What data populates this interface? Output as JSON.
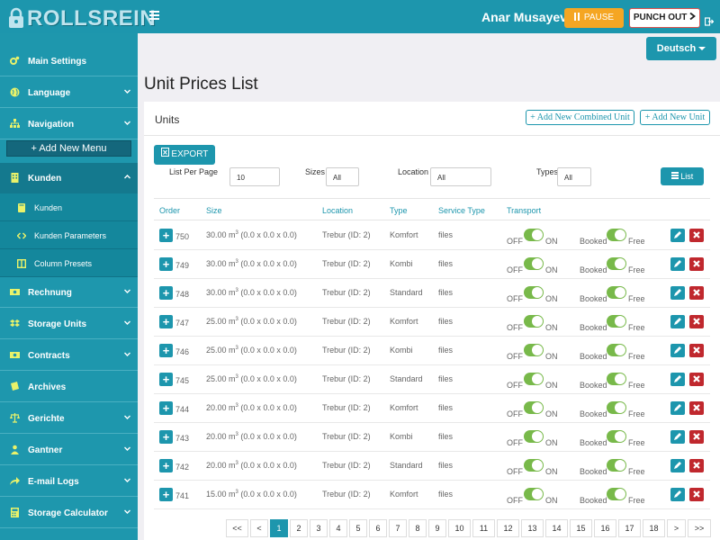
{
  "header": {
    "logo_text": "ROLLSREIN",
    "username": "Anar Musayev",
    "pause_label": "PAUSE",
    "punch_out_label": "PUNCH OUT",
    "language_label": "Deutsch",
    "colors": {
      "accent": "#1d96ad",
      "pause": "#f5a623",
      "danger": "#c0282e",
      "toggle": "#78b94a"
    }
  },
  "sidebar": {
    "items": [
      {
        "label": "Main Settings",
        "icon": "cogs-icon"
      },
      {
        "label": "Language",
        "icon": "globe-icon"
      },
      {
        "label": "Navigation",
        "icon": "sitemap-icon"
      },
      {
        "label": "Kunden",
        "icon": "building-icon"
      },
      {
        "label": "Rechnung",
        "icon": "money-icon"
      },
      {
        "label": "Storage Units",
        "icon": "dropbox-icon"
      },
      {
        "label": "Contracts",
        "icon": "money-icon"
      },
      {
        "label": "Archives",
        "icon": "book-icon"
      },
      {
        "label": "Gerichte",
        "icon": "balance-scale-icon"
      },
      {
        "label": "Gantner",
        "icon": "users-icon"
      },
      {
        "label": "E-mail Logs",
        "icon": "share-icon"
      },
      {
        "label": "Storage Calculator",
        "icon": "calculator-icon"
      }
    ],
    "add_new_menu": "Add New Menu",
    "sub_items": [
      {
        "label": "Kunden",
        "icon": "book-icon"
      },
      {
        "label": "Kunden Parameters",
        "icon": "code-icon"
      },
      {
        "label": "Column Presets",
        "icon": "columns-icon"
      }
    ]
  },
  "page": {
    "title": "Unit Prices List",
    "card_title": "Units",
    "add_combined_unit": "Add New Combined Unit",
    "add_unit": "Add New Unit",
    "export_label": "EXPORT",
    "list_label": "List"
  },
  "filters": {
    "list_per_page_label": "List Per Page",
    "list_per_page_value": "10",
    "sizes_label": "Sizes",
    "sizes_value": "All",
    "location_label": "Location",
    "location_value": "All",
    "types_label": "Types",
    "types_value": "All"
  },
  "table": {
    "columns": [
      "Order",
      "Size",
      "Location",
      "Type",
      "Service Type",
      "Transport"
    ],
    "off_label": "OFF",
    "on_label": "ON",
    "booked_label": "Booked",
    "free_label": "Free",
    "rows": [
      {
        "order": "750",
        "size_val": "30.00 m",
        "size_dims": " (0.0 x 0.0 x 0.0)",
        "location": "Trebur (ID: 2)",
        "type": "Komfort",
        "service": "files"
      },
      {
        "order": "749",
        "size_val": "30.00 m",
        "size_dims": " (0.0 x 0.0 x 0.0)",
        "location": "Trebur (ID: 2)",
        "type": "Kombi",
        "service": "files"
      },
      {
        "order": "748",
        "size_val": "30.00 m",
        "size_dims": " (0.0 x 0.0 x 0.0)",
        "location": "Trebur (ID: 2)",
        "type": "Standard",
        "service": "files"
      },
      {
        "order": "747",
        "size_val": "25.00 m",
        "size_dims": " (0.0 x 0.0 x 0.0)",
        "location": "Trebur (ID: 2)",
        "type": "Komfort",
        "service": "files"
      },
      {
        "order": "746",
        "size_val": "25.00 m",
        "size_dims": " (0.0 x 0.0 x 0.0)",
        "location": "Trebur (ID: 2)",
        "type": "Kombi",
        "service": "files"
      },
      {
        "order": "745",
        "size_val": "25.00 m",
        "size_dims": " (0.0 x 0.0 x 0.0)",
        "location": "Trebur (ID: 2)",
        "type": "Standard",
        "service": "files"
      },
      {
        "order": "744",
        "size_val": "20.00 m",
        "size_dims": " (0.0 x 0.0 x 0.0)",
        "location": "Trebur (ID: 2)",
        "type": "Komfort",
        "service": "files"
      },
      {
        "order": "743",
        "size_val": "20.00 m",
        "size_dims": " (0.0 x 0.0 x 0.0)",
        "location": "Trebur (ID: 2)",
        "type": "Kombi",
        "service": "files"
      },
      {
        "order": "742",
        "size_val": "20.00 m",
        "size_dims": " (0.0 x 0.0 x 0.0)",
        "location": "Trebur (ID: 2)",
        "type": "Standard",
        "service": "files"
      },
      {
        "order": "741",
        "size_val": "15.00 m",
        "size_dims": " (0.0 x 0.0 x 0.0)",
        "location": "Trebur (ID: 2)",
        "type": "Komfort",
        "service": "files"
      }
    ]
  },
  "pagination": {
    "first": "<<",
    "prev": "<",
    "next": ">",
    "last": ">>",
    "pages": [
      "1",
      "2",
      "3",
      "4",
      "5",
      "6",
      "7",
      "8",
      "9",
      "10",
      "11",
      "12",
      "13",
      "14",
      "15",
      "16",
      "17",
      "18"
    ],
    "active": "1"
  }
}
